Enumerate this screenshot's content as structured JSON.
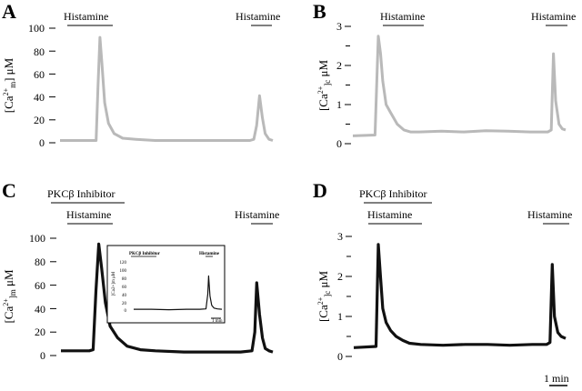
{
  "chart_data": [
    {
      "type": "line",
      "panel_label": "A",
      "ylabel": "[Ca2+]m μM",
      "ylim": [
        0,
        100
      ],
      "yticks": [
        "0",
        "20",
        "40",
        "60",
        "80",
        "100"
      ],
      "annotations": [
        "Histamine",
        "Histamine"
      ],
      "color": "#b9b9b9",
      "series": [
        {
          "x": [
            0,
            1.5,
            1.7,
            1.9,
            2.0,
            2.1,
            2.2,
            2.35,
            2.55,
            2.85,
            3.3,
            4.0,
            5.0,
            7.0,
            9.0,
            10.0,
            10.2,
            10.35,
            10.5,
            10.65,
            10.8,
            11.0,
            11.2
          ],
          "y": [
            2,
            2,
            2,
            2,
            50,
            92,
            70,
            35,
            17,
            8,
            4,
            3,
            2,
            2,
            2,
            2,
            3,
            15,
            41,
            22,
            8,
            3,
            2
          ]
        }
      ]
    },
    {
      "type": "line",
      "panel_label": "B",
      "ylabel": "[Ca2+]c μM",
      "ylim": [
        0,
        3
      ],
      "yticks": [
        "0",
        "1",
        "2",
        "3"
      ],
      "annotations": [
        "Histamine",
        "Histamine"
      ],
      "color": "#b9b9b9",
      "series": [
        {
          "x": [
            0,
            1.0,
            1.15,
            1.25,
            1.35,
            1.5,
            1.7,
            2.0,
            2.3,
            2.6,
            3.0,
            4.0,
            5.0,
            6.0,
            7.0,
            8.0,
            8.8,
            8.95,
            9.05,
            9.15,
            9.3,
            9.45,
            9.6
          ],
          "y": [
            0.2,
            0.22,
            2.75,
            2.3,
            1.6,
            1.0,
            0.8,
            0.5,
            0.35,
            0.3,
            0.3,
            0.32,
            0.3,
            0.33,
            0.32,
            0.3,
            0.3,
            0.35,
            2.3,
            1.1,
            0.5,
            0.38,
            0.35
          ]
        }
      ]
    },
    {
      "type": "line",
      "panel_label": "C",
      "ylabel": "[Ca2+]m μM",
      "ylim": [
        0,
        100
      ],
      "yticks": [
        "0",
        "20",
        "40",
        "60",
        "80",
        "100"
      ],
      "annotations": [
        "PKCβ Inhibitor",
        "Histamine",
        "Histamine"
      ],
      "color": "#111111",
      "series": [
        {
          "x": [
            0,
            1.5,
            1.7,
            1.85,
            2.0,
            2.15,
            2.35,
            2.6,
            3.0,
            3.5,
            4.2,
            5.0,
            6.5,
            8.0,
            9.5,
            10.1,
            10.25,
            10.35,
            10.5,
            10.65,
            10.8,
            11.0,
            11.2
          ],
          "y": [
            4,
            4,
            5,
            55,
            95,
            75,
            45,
            25,
            15,
            8,
            5,
            4,
            3,
            3,
            3,
            4,
            20,
            62,
            35,
            15,
            6,
            4,
            3
          ]
        }
      ],
      "inset": {
        "title": "PKCβ Inhibitor",
        "annotation": "Histamine",
        "ylabel": "[Ca2+]m μM",
        "yticks": [
          "0",
          "20",
          "40",
          "60",
          "80",
          "100",
          "120"
        ],
        "scale_label": "1 min",
        "series": [
          {
            "x": [
              0,
              2,
              4,
              6,
              7.5,
              8.2,
              8.4,
              8.5,
              8.65,
              8.85,
              9.1,
              9.5,
              10
            ],
            "y": [
              2,
              2,
              1,
              2,
              2,
              3,
              40,
              85,
              35,
              12,
              5,
              3,
              2
            ]
          }
        ]
      }
    },
    {
      "type": "line",
      "panel_label": "D",
      "ylabel": "[Ca2+]c μM",
      "ylim": [
        0,
        3
      ],
      "yticks": [
        "0",
        "1",
        "2",
        "3"
      ],
      "annotations": [
        "PKCβ Inhibitor",
        "Histamine",
        "Histamine"
      ],
      "color": "#111111",
      "series": [
        {
          "x": [
            0,
            1.0,
            1.1,
            1.2,
            1.3,
            1.45,
            1.65,
            1.9,
            2.2,
            2.5,
            3.0,
            4.0,
            5.0,
            6.0,
            7.0,
            8.0,
            8.65,
            8.8,
            8.9,
            9.0,
            9.15,
            9.3,
            9.5
          ],
          "y": [
            0.22,
            0.25,
            2.8,
            2.0,
            1.2,
            0.85,
            0.65,
            0.5,
            0.4,
            0.33,
            0.3,
            0.28,
            0.3,
            0.3,
            0.28,
            0.3,
            0.3,
            0.35,
            2.3,
            1.0,
            0.6,
            0.5,
            0.45
          ]
        }
      ]
    }
  ],
  "scale_bar_label": "1 min"
}
